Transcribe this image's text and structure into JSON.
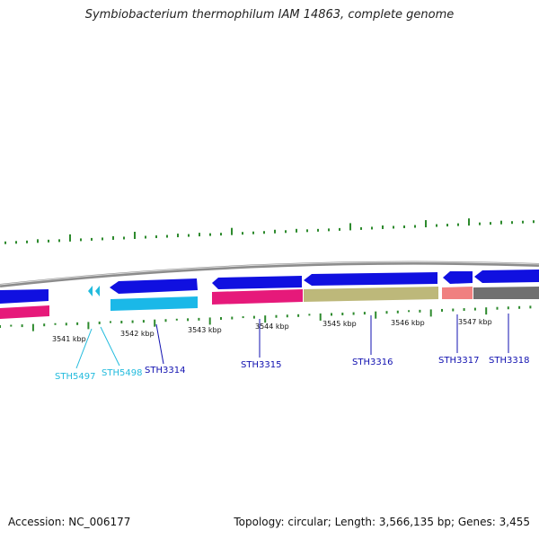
{
  "title": "Symbiobacterium thermophilum IAM 14863, complete genome",
  "footer": {
    "accession": "Accession: NC_006177",
    "summary": "Topology: circular; Length: 3,566,135 bp; Genes: 3,455"
  },
  "colors": {
    "backbone": "#8c8c8c",
    "gc_tick": "#2d8a2d",
    "forward_gene": "#1010e0",
    "label_dark": "#1010b0",
    "label_light": "#22bbdd"
  },
  "scale_labels": [
    "3541 kbp",
    "3542 kbp",
    "3543 kbp",
    "3544 kbp",
    "3545 kbp",
    "3546 kbp",
    "3547 kbp"
  ],
  "genes": [
    {
      "name": "STH5497",
      "color": "#22bbdd"
    },
    {
      "name": "STH5498",
      "color": "#22bbdd"
    },
    {
      "name": "STH3314",
      "color": "#1010b0"
    },
    {
      "name": "STH3315",
      "color": "#1010b0"
    },
    {
      "name": "STH3316",
      "color": "#1010b0"
    },
    {
      "name": "STH3317",
      "color": "#1010b0"
    },
    {
      "name": "STH3318",
      "color": "#1010b0"
    }
  ],
  "features": [
    {
      "name": "forward-gene-left",
      "color": "#1010e0"
    },
    {
      "name": "reverse-gene-left",
      "color": "#e6197a"
    },
    {
      "name": "rna-gene-sth5497",
      "color": "#22bbdd"
    },
    {
      "name": "rna-gene-sth5498",
      "color": "#22bbdd"
    },
    {
      "name": "gene-sth3314-forward",
      "color": "#1010e0"
    },
    {
      "name": "gene-sth3314-cds",
      "color": "#1ab8e8"
    },
    {
      "name": "gene-sth3315-forward",
      "color": "#1010e0"
    },
    {
      "name": "gene-sth3315-cds",
      "color": "#e6197a"
    },
    {
      "name": "gene-sth3316-forward",
      "color": "#1010e0"
    },
    {
      "name": "gene-sth3316-cds",
      "color": "#bdb87a"
    },
    {
      "name": "gene-sth3317-forward",
      "color": "#1010e0"
    },
    {
      "name": "gene-sth3317-cds",
      "color": "#f08080"
    },
    {
      "name": "gene-sth3318-forward",
      "color": "#1010e0"
    },
    {
      "name": "gene-sth3318-cds",
      "color": "#707070"
    }
  ]
}
